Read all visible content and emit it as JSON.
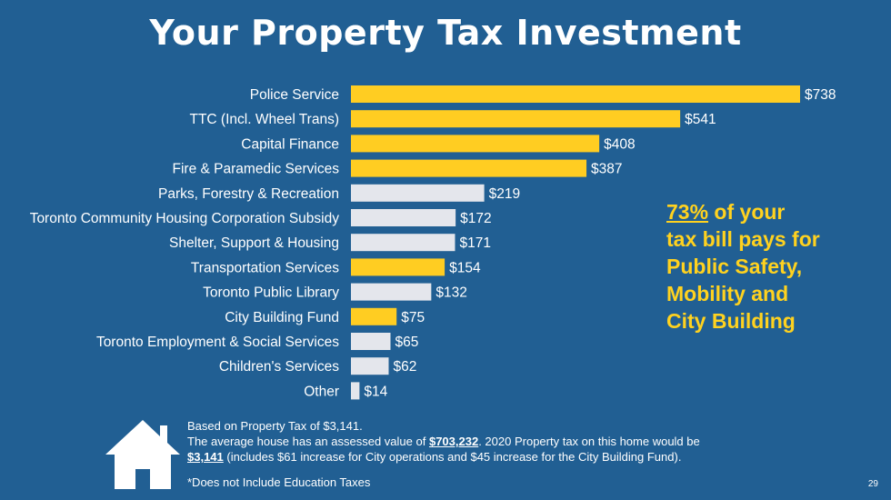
{
  "title": "Your Property Tax Investment",
  "chart_data": {
    "type": "bar",
    "orientation": "horizontal",
    "title": "Your Property Tax Investment",
    "categories": [
      "Police Service",
      "TTC (Incl. Wheel Trans)",
      "Capital Finance",
      "Fire & Paramedic Services",
      "Parks, Forestry & Recreation",
      "Toronto Community Housing Corporation Subsidy",
      "Shelter, Support & Housing",
      "Transportation Services",
      "Toronto Public Library",
      "City Building Fund",
      "Toronto Employment & Social Services",
      "Children's Services",
      "Other"
    ],
    "values": [
      738,
      541,
      408,
      387,
      219,
      172,
      171,
      154,
      132,
      75,
      65,
      62,
      14
    ],
    "value_labels": [
      "$738",
      "$541",
      "$408",
      "$387",
      "$219",
      "$172",
      "$171",
      "$154",
      "$132",
      "$75",
      "$65",
      "$62",
      "$14"
    ],
    "highlighted": [
      true,
      true,
      true,
      true,
      false,
      false,
      false,
      true,
      false,
      true,
      false,
      false,
      false
    ],
    "colors": {
      "highlight": "#ffcd22",
      "default": "#e4e6ec"
    },
    "xlim": [
      0,
      738
    ]
  },
  "callout": {
    "percent": "73%",
    "line1_rest": " of your",
    "line2": "tax bill pays for",
    "line3": "Public Safety,",
    "line4": "Mobility and",
    "line5": "City Building"
  },
  "footer": {
    "line1": "Based on Property Tax of $3,141.",
    "line2_a": "The average house has an assessed value of ",
    "assessed_value": "$703,232",
    "line2_b": ". 2020 Property tax on this home would be",
    "tax_value": "$3,141",
    "line3_rest": " (includes $61 increase for City operations and $45 increase for the City Building Fund).",
    "footnote": "*Does not Include Education Taxes"
  },
  "page_number": "29",
  "icons": {
    "house": "house-icon"
  },
  "background_color": "#215f93"
}
